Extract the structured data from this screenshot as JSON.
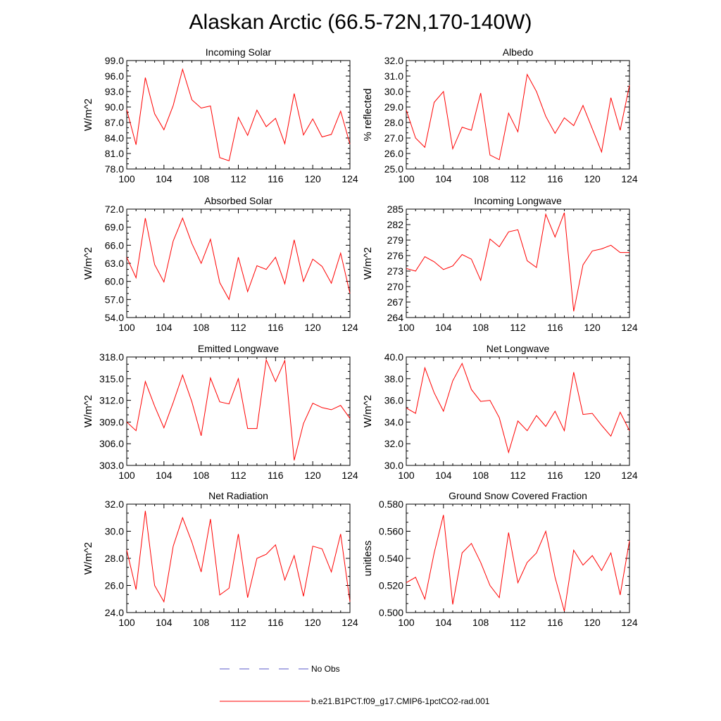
{
  "title": "Alaskan Arctic (66.5-72N,170-140W)",
  "chart_data": [
    {
      "type": "line",
      "title": "Incoming Solar",
      "xlabel": "",
      "ylabel": "W/m^2",
      "xlim": [
        100,
        124
      ],
      "ylim": [
        78,
        99
      ],
      "xticks": [
        "100",
        "104",
        "108",
        "112",
        "116",
        "120",
        "124"
      ],
      "yticks": [
        "78.0",
        "81.0",
        "84.0",
        "87.0",
        "90.0",
        "93.0",
        "96.0",
        "99.0"
      ],
      "series": [
        {
          "name": "b.e21.B1PCT.f09_g17.CMIP6-1pctCO2-rad.001",
          "color": "#ff0000",
          "x": [
            100,
            101,
            102,
            103,
            104,
            105,
            106,
            107,
            108,
            109,
            110,
            111,
            112,
            113,
            114,
            115,
            116,
            117,
            118,
            119,
            120,
            121,
            122,
            123,
            124
          ],
          "values": [
            89.5,
            82.7,
            95.7,
            88.7,
            85.6,
            90.3,
            97.3,
            91.4,
            89.8,
            90.2,
            80.2,
            79.6,
            88.0,
            84.5,
            89.4,
            86.2,
            87.8,
            82.9,
            92.6,
            84.6,
            87.7,
            84.2,
            84.7,
            89.2,
            82.8
          ]
        }
      ]
    },
    {
      "type": "line",
      "title": "Albedo",
      "xlabel": "",
      "ylabel": "% reflected",
      "xlim": [
        100,
        124
      ],
      "ylim": [
        25,
        32
      ],
      "xticks": [
        "100",
        "104",
        "108",
        "112",
        "116",
        "120",
        "124"
      ],
      "yticks": [
        "25.0",
        "26.0",
        "27.0",
        "28.0",
        "29.0",
        "30.0",
        "31.0",
        "32.0"
      ],
      "series": [
        {
          "name": "b.e21.B1PCT.f09_g17.CMIP6-1pctCO2-rad.001",
          "color": "#ff0000",
          "x": [
            100,
            101,
            102,
            103,
            104,
            105,
            106,
            107,
            108,
            109,
            110,
            111,
            112,
            113,
            114,
            115,
            116,
            117,
            118,
            119,
            120,
            121,
            122,
            123,
            124
          ],
          "values": [
            28.8,
            27.0,
            26.4,
            29.3,
            30.0,
            26.3,
            27.7,
            27.5,
            29.9,
            25.9,
            25.6,
            28.6,
            27.4,
            31.1,
            30.0,
            28.4,
            27.3,
            28.3,
            27.8,
            29.1,
            27.6,
            26.1,
            29.6,
            27.5,
            30.4
          ]
        }
      ]
    },
    {
      "type": "line",
      "title": "Absorbed Solar",
      "xlabel": "",
      "ylabel": "W/m^2",
      "xlim": [
        100,
        124
      ],
      "ylim": [
        54,
        72
      ],
      "xticks": [
        "100",
        "104",
        "108",
        "112",
        "116",
        "120",
        "124"
      ],
      "yticks": [
        "54.0",
        "57.0",
        "60.0",
        "63.0",
        "66.0",
        "69.0",
        "72.0"
      ],
      "series": [
        {
          "name": "b.e21.B1PCT.f09_g17.CMIP6-1pctCO2-rad.001",
          "color": "#ff0000",
          "x": [
            100,
            101,
            102,
            103,
            104,
            105,
            106,
            107,
            108,
            109,
            110,
            111,
            112,
            113,
            114,
            115,
            116,
            117,
            118,
            119,
            120,
            121,
            122,
            123,
            124
          ],
          "values": [
            64.0,
            60.6,
            70.5,
            62.8,
            59.9,
            66.7,
            70.5,
            66.3,
            63.0,
            67.0,
            59.8,
            57.0,
            64.0,
            58.3,
            62.6,
            62.0,
            64.0,
            59.6,
            66.9,
            60.0,
            63.7,
            62.5,
            59.7,
            64.7,
            58.0
          ]
        }
      ]
    },
    {
      "type": "line",
      "title": "Incoming Longwave",
      "xlabel": "",
      "ylabel": "W/m^2",
      "xlim": [
        100,
        124
      ],
      "ylim": [
        264,
        285
      ],
      "xticks": [
        "100",
        "104",
        "108",
        "112",
        "116",
        "120",
        "124"
      ],
      "yticks": [
        "264",
        "267",
        "270",
        "273",
        "276",
        "279",
        "282",
        "285"
      ],
      "series": [
        {
          "name": "b.e21.B1PCT.f09_g17.CMIP6-1pctCO2-rad.001",
          "color": "#ff0000",
          "x": [
            100,
            101,
            102,
            103,
            104,
            105,
            106,
            107,
            108,
            109,
            110,
            111,
            112,
            113,
            114,
            115,
            116,
            117,
            118,
            119,
            120,
            121,
            122,
            123,
            124
          ],
          "values": [
            273.5,
            273.0,
            275.8,
            274.8,
            273.3,
            274.0,
            276.2,
            275.3,
            271.2,
            279.2,
            277.7,
            280.6,
            281.0,
            275.0,
            273.7,
            284.0,
            279.6,
            284.3,
            265.2,
            274.2,
            276.9,
            277.3,
            278.0,
            276.6,
            276.6
          ]
        }
      ]
    },
    {
      "type": "line",
      "title": "Emitted Longwave",
      "xlabel": "",
      "ylabel": "W/m^2",
      "xlim": [
        100,
        124
      ],
      "ylim": [
        303,
        318
      ],
      "xticks": [
        "100",
        "104",
        "108",
        "112",
        "116",
        "120",
        "124"
      ],
      "yticks": [
        "303.0",
        "306.0",
        "309.0",
        "312.0",
        "315.0",
        "318.0"
      ],
      "series": [
        {
          "name": "b.e21.B1PCT.f09_g17.CMIP6-1pctCO2-rad.001",
          "color": "#ff0000",
          "x": [
            100,
            101,
            102,
            103,
            104,
            105,
            106,
            107,
            108,
            109,
            110,
            111,
            112,
            113,
            114,
            115,
            116,
            117,
            118,
            119,
            120,
            121,
            122,
            123,
            124
          ],
          "values": [
            309.0,
            307.8,
            314.6,
            311.2,
            308.2,
            311.7,
            315.5,
            311.8,
            307.1,
            315.1,
            311.8,
            311.5,
            315.0,
            308.1,
            308.1,
            317.6,
            314.6,
            317.5,
            303.7,
            308.8,
            311.6,
            311.0,
            310.7,
            311.3,
            309.5
          ]
        }
      ]
    },
    {
      "type": "line",
      "title": "Net Longwave",
      "xlabel": "",
      "ylabel": "W/m^2",
      "xlim": [
        100,
        124
      ],
      "ylim": [
        30,
        40
      ],
      "xticks": [
        "100",
        "104",
        "108",
        "112",
        "116",
        "120",
        "124"
      ],
      "yticks": [
        "30.0",
        "32.0",
        "34.0",
        "36.0",
        "38.0",
        "40.0"
      ],
      "series": [
        {
          "name": "b.e21.B1PCT.f09_g17.CMIP6-1pctCO2-rad.001",
          "color": "#ff0000",
          "x": [
            100,
            101,
            102,
            103,
            104,
            105,
            106,
            107,
            108,
            109,
            110,
            111,
            112,
            113,
            114,
            115,
            116,
            117,
            118,
            119,
            120,
            121,
            122,
            123,
            124
          ],
          "values": [
            35.3,
            34.8,
            39.0,
            36.7,
            35.0,
            37.8,
            39.4,
            37.0,
            35.9,
            36.0,
            34.4,
            31.2,
            34.1,
            33.2,
            34.6,
            33.6,
            35.0,
            33.2,
            38.6,
            34.7,
            34.8,
            33.7,
            32.7,
            34.9,
            33.2
          ]
        }
      ]
    },
    {
      "type": "line",
      "title": "Net Radiation",
      "xlabel": "",
      "ylabel": "W/m^2",
      "xlim": [
        100,
        124
      ],
      "ylim": [
        24,
        32
      ],
      "xticks": [
        "100",
        "104",
        "108",
        "112",
        "116",
        "120",
        "124"
      ],
      "yticks": [
        "24.0",
        "26.0",
        "28.0",
        "30.0",
        "32.0"
      ],
      "series": [
        {
          "name": "b.e21.B1PCT.f09_g17.CMIP6-1pctCO2-rad.001",
          "color": "#ff0000",
          "x": [
            100,
            101,
            102,
            103,
            104,
            105,
            106,
            107,
            108,
            109,
            110,
            111,
            112,
            113,
            114,
            115,
            116,
            117,
            118,
            119,
            120,
            121,
            122,
            123,
            124
          ],
          "values": [
            28.6,
            25.7,
            31.5,
            26.0,
            24.8,
            28.9,
            31.0,
            29.2,
            27.0,
            30.9,
            25.3,
            25.8,
            29.8,
            25.1,
            28.0,
            28.3,
            29.0,
            26.4,
            28.2,
            25.2,
            28.9,
            28.7,
            27.0,
            29.8,
            24.8
          ]
        }
      ]
    },
    {
      "type": "line",
      "title": "Ground Snow Covered Fraction",
      "xlabel": "",
      "ylabel": "unitless",
      "xlim": [
        100,
        124
      ],
      "ylim": [
        0.5,
        0.58
      ],
      "xticks": [
        "100",
        "104",
        "108",
        "112",
        "116",
        "120",
        "124"
      ],
      "yticks": [
        "0.500",
        "0.520",
        "0.540",
        "0.560",
        "0.580"
      ],
      "series": [
        {
          "name": "b.e21.B1PCT.f09_g17.CMIP6-1pctCO2-rad.001",
          "color": "#ff0000",
          "x": [
            100,
            101,
            102,
            103,
            104,
            105,
            106,
            107,
            108,
            109,
            110,
            111,
            112,
            113,
            114,
            115,
            116,
            117,
            118,
            119,
            120,
            121,
            122,
            123,
            124
          ],
          "values": [
            0.522,
            0.526,
            0.51,
            0.544,
            0.572,
            0.506,
            0.544,
            0.551,
            0.537,
            0.52,
            0.511,
            0.559,
            0.522,
            0.537,
            0.544,
            0.56,
            0.526,
            0.501,
            0.546,
            0.535,
            0.542,
            0.531,
            0.544,
            0.513,
            0.553
          ]
        }
      ]
    }
  ],
  "legend": {
    "items": [
      {
        "label": "No Obs",
        "color": "#5a5ac8",
        "dash": "dashed"
      },
      {
        "label": "b.e21.B1PCT.f09_g17.CMIP6-1pctCO2-rad.001",
        "color": "#ff0000",
        "dash": "solid"
      }
    ]
  }
}
